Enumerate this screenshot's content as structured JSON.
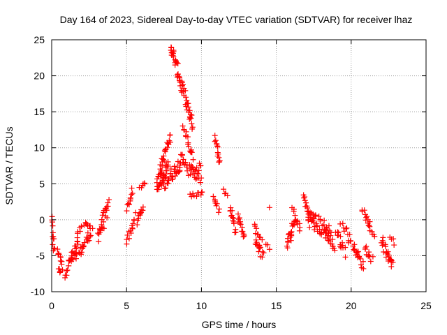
{
  "chart_data": {
    "type": "scatter",
    "title": "Day 164 of 2023, Sidereal Day-to-day VTEC variation (SDTVAR) for receiver lhaz",
    "xlabel": "GPS time / hours",
    "ylabel": "SDTVAR / TECUs",
    "xlim": [
      0,
      25
    ],
    "ylim": [
      -10,
      25
    ],
    "xticks": [
      0,
      5,
      10,
      15,
      20,
      25
    ],
    "yticks": [
      -10,
      -5,
      0,
      5,
      10,
      15,
      20,
      25
    ],
    "grid": true,
    "marker": "+",
    "color": "#ff0000",
    "series": [
      {
        "name": "SDTVAR",
        "clusters": [
          {
            "x0": 0.0,
            "x1": 0.15,
            "y0": 0.2,
            "y1": -4.5,
            "n": 14,
            "w": 0.6
          },
          {
            "x0": 0.4,
            "x1": 0.7,
            "y0": -4.0,
            "y1": -6.5,
            "n": 10,
            "w": 0.6
          },
          {
            "x0": 0.45,
            "x1": 0.6,
            "y0": -6.5,
            "y1": -7.5,
            "n": 5,
            "w": 0.4
          },
          {
            "x0": 0.9,
            "x1": 1.8,
            "y0": -7.3,
            "y1": -3.0,
            "n": 24,
            "w": 0.8
          },
          {
            "x0": 1.3,
            "x1": 1.7,
            "y0": -5.8,
            "y1": -4.8,
            "n": 10,
            "w": 0.5
          },
          {
            "x0": 1.8,
            "x1": 2.7,
            "y0": -4.8,
            "y1": -1.5,
            "n": 20,
            "w": 0.7
          },
          {
            "x0": 1.7,
            "x1": 2.0,
            "y0": -1.8,
            "y1": -1.2,
            "n": 5,
            "w": 0.3
          },
          {
            "x0": 2.2,
            "x1": 2.6,
            "y0": -0.6,
            "y1": -1.0,
            "n": 8,
            "w": 0.3
          },
          {
            "x0": 3.1,
            "x1": 3.8,
            "y0": -2.0,
            "y1": 1.8,
            "n": 26,
            "w": 1.1
          },
          {
            "x0": 5.0,
            "x1": 5.6,
            "y0": -3.2,
            "y1": 0.5,
            "n": 14,
            "w": 0.6
          },
          {
            "x0": 5.05,
            "x1": 5.4,
            "y0": 1.6,
            "y1": 4.0,
            "n": 10,
            "w": 0.4
          },
          {
            "x0": 5.7,
            "x1": 6.1,
            "y0": -0.5,
            "y1": 2.0,
            "n": 12,
            "w": 0.7
          },
          {
            "x0": 5.9,
            "x1": 6.2,
            "y0": 4.2,
            "y1": 5.2,
            "n": 6,
            "w": 0.3
          },
          {
            "x0": 7.0,
            "x1": 7.8,
            "y0": 4.5,
            "y1": 7.5,
            "n": 30,
            "w": 1.0
          },
          {
            "x0": 7.1,
            "x1": 7.9,
            "y0": 6.0,
            "y1": 11.5,
            "n": 28,
            "w": 0.7
          },
          {
            "x0": 7.5,
            "x1": 8.8,
            "y0": 5.0,
            "y1": 8.5,
            "n": 36,
            "w": 1.0
          },
          {
            "x0": 7.9,
            "x1": 9.4,
            "y0": 24.5,
            "y1": 13.0,
            "n": 60,
            "w": 0.9
          },
          {
            "x0": 8.8,
            "x1": 9.4,
            "y0": 13.0,
            "y1": 8.5,
            "n": 16,
            "w": 0.6
          },
          {
            "x0": 8.6,
            "x1": 10.0,
            "y0": 8.5,
            "y1": 5.5,
            "n": 24,
            "w": 0.7
          },
          {
            "x0": 9.2,
            "x1": 10.0,
            "y0": 6.5,
            "y1": 7.5,
            "n": 12,
            "w": 0.6
          },
          {
            "x0": 9.3,
            "x1": 10.1,
            "y0": 3.3,
            "y1": 3.8,
            "n": 10,
            "w": 0.3
          },
          {
            "x0": 10.9,
            "x1": 11.25,
            "y0": 11.5,
            "y1": 8.0,
            "n": 14,
            "w": 0.3
          },
          {
            "x0": 10.8,
            "x1": 11.2,
            "y0": 3.0,
            "y1": 1.5,
            "n": 8,
            "w": 0.5
          },
          {
            "x0": 11.5,
            "x1": 11.7,
            "y0": 4.0,
            "y1": 3.4,
            "n": 4,
            "w": 0.3
          },
          {
            "x0": 11.9,
            "x1": 12.3,
            "y0": 1.8,
            "y1": -1.5,
            "n": 14,
            "w": 0.6
          },
          {
            "x0": 12.4,
            "x1": 12.9,
            "y0": 0.5,
            "y1": -2.5,
            "n": 14,
            "w": 0.5
          },
          {
            "x0": 13.6,
            "x1": 14.1,
            "y0": -2.5,
            "y1": -5.0,
            "n": 16,
            "w": 0.7
          },
          {
            "x0": 13.5,
            "x1": 14.0,
            "y0": -1.0,
            "y1": -2.5,
            "n": 8,
            "w": 0.4
          },
          {
            "x0": 14.3,
            "x1": 14.5,
            "y0": -3.5,
            "y1": -4.0,
            "n": 3,
            "w": 0.3
          },
          {
            "x0": 14.5,
            "x1": 14.6,
            "y0": 1.7,
            "y1": 1.7,
            "n": 1,
            "w": 0.0
          },
          {
            "x0": 15.7,
            "x1": 16.2,
            "y0": -3.8,
            "y1": -0.5,
            "n": 18,
            "w": 0.8
          },
          {
            "x0": 16.1,
            "x1": 16.6,
            "y0": 1.5,
            "y1": -1.5,
            "n": 12,
            "w": 0.6
          },
          {
            "x0": 16.8,
            "x1": 17.2,
            "y0": 3.4,
            "y1": 0.5,
            "n": 12,
            "w": 0.6
          },
          {
            "x0": 17.1,
            "x1": 18.6,
            "y0": 0.5,
            "y1": -2.0,
            "n": 50,
            "w": 1.3
          },
          {
            "x0": 18.3,
            "x1": 18.9,
            "y0": -1.5,
            "y1": -4.0,
            "n": 14,
            "w": 0.8
          },
          {
            "x0": 19.0,
            "x1": 19.6,
            "y0": -1.5,
            "y1": -4.5,
            "n": 14,
            "w": 0.7
          },
          {
            "x0": 19.3,
            "x1": 19.9,
            "y0": -0.5,
            "y1": -2.0,
            "n": 8,
            "w": 0.5
          },
          {
            "x0": 19.8,
            "x1": 20.3,
            "y0": -2.8,
            "y1": -4.0,
            "n": 8,
            "w": 0.5
          },
          {
            "x0": 20.2,
            "x1": 20.8,
            "y0": -4.0,
            "y1": -6.5,
            "n": 14,
            "w": 0.6
          },
          {
            "x0": 20.7,
            "x1": 21.3,
            "y0": 1.5,
            "y1": -0.5,
            "n": 10,
            "w": 0.5
          },
          {
            "x0": 20.9,
            "x1": 21.4,
            "y0": -3.8,
            "y1": -5.5,
            "n": 10,
            "w": 0.5
          },
          {
            "x0": 21.1,
            "x1": 21.6,
            "y0": -0.5,
            "y1": -2.3,
            "n": 8,
            "w": 0.4
          },
          {
            "x0": 22.0,
            "x1": 22.7,
            "y0": -2.7,
            "y1": -6.5,
            "n": 18,
            "w": 0.7
          },
          {
            "x0": 22.4,
            "x1": 22.8,
            "y0": -4.5,
            "y1": -6.0,
            "n": 8,
            "w": 0.5
          },
          {
            "x0": 22.6,
            "x1": 22.9,
            "y0": -2.2,
            "y1": -3.3,
            "n": 4,
            "w": 0.3
          }
        ]
      }
    ]
  }
}
